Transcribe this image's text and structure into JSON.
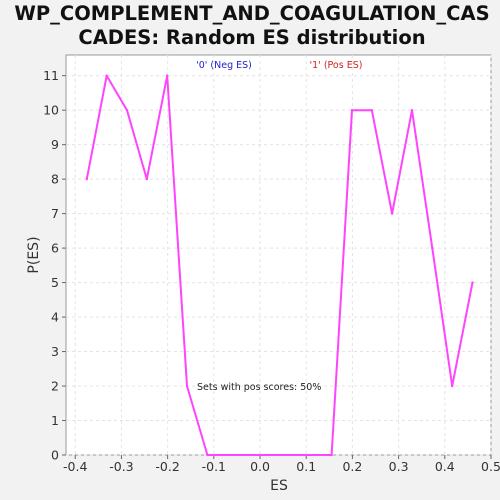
{
  "chart_data": {
    "type": "line",
    "title_lines": [
      "WP_COMPLEMENT_AND_COAGULATION_CAS",
      "CADES: Random ES distribution"
    ],
    "xlabel": "ES",
    "ylabel": "P(ES)",
    "xlim": [
      -0.42,
      0.5
    ],
    "ylim": [
      0,
      11.6
    ],
    "x_ticks": [
      -0.4,
      -0.3,
      -0.2,
      -0.1,
      0.0,
      0.1,
      0.2,
      0.3,
      0.4,
      0.5
    ],
    "x_tick_labels": [
      "-0.4",
      "-0.3",
      "-0.2",
      "-0.1",
      "0.0",
      "0.1",
      "0.2",
      "0.3",
      "0.4",
      "0.5"
    ],
    "y_ticks": [
      0,
      1,
      2,
      3,
      4,
      5,
      6,
      7,
      8,
      9,
      10,
      11
    ],
    "y_tick_labels": [
      "0",
      "1",
      "2",
      "3",
      "4",
      "5",
      "6",
      "7",
      "8",
      "9",
      "10",
      "11"
    ],
    "grid": true,
    "legend": [
      {
        "label": "'0' (Neg ES)",
        "color": "#2222cc"
      },
      {
        "label": "'1' (Pos ES)",
        "color": "#cc2222"
      }
    ],
    "annotation": "Sets with pos scores: 50%",
    "series": [
      {
        "color": "#ff44ff",
        "x": [
          -0.375,
          -0.332,
          -0.288,
          -0.245,
          -0.201,
          -0.158,
          -0.114,
          0.155,
          0.199,
          0.242,
          0.286,
          0.329,
          0.373,
          0.416,
          0.46
        ],
        "y": [
          8,
          11,
          10,
          8,
          11,
          2,
          0,
          0,
          10,
          10,
          7,
          10,
          6,
          2,
          5
        ]
      }
    ]
  }
}
